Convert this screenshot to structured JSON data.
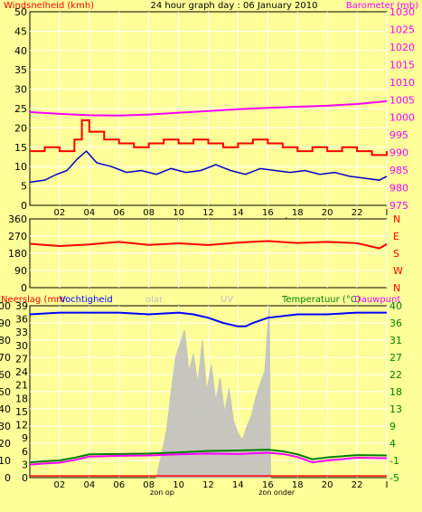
{
  "title": "24 hour graph day : 06 January 2010",
  "colors": {
    "background": "#ffff99",
    "panel_border": "#000000",
    "grid": "#ffffff",
    "wind": "#0000cc",
    "gust": "#ff0000",
    "gust_fill": "#ffcc00",
    "pressure": "#ff00ff",
    "direction": "#ff0000",
    "humidity": "#0000ff",
    "solar": "#c0c0c0",
    "temperature": "#008000",
    "dewpoint": "#ff00ff",
    "rain": "#ff0000"
  },
  "chart_data": [
    {
      "type": "line",
      "name": "wind-and-pressure",
      "ylabel_left": "Windsnelheid (kmh)",
      "ylabel_right": "Barometer (mb)",
      "x_ticks": [
        "02",
        "04",
        "06",
        "08",
        "10",
        "12",
        "14",
        "16",
        "18",
        "20",
        "22",
        "I"
      ],
      "x_range": [
        0,
        24
      ],
      "ylim_left": [
        0,
        50
      ],
      "y_ticks_left": [
        "0",
        "5",
        "10",
        "15",
        "20",
        "25",
        "30",
        "35",
        "40",
        "45",
        "50"
      ],
      "ylim_right": [
        975,
        1030
      ],
      "y_ticks_right": [
        "975",
        "980",
        "985",
        "990",
        "995",
        "1000",
        "1005",
        "1010",
        "1015",
        "1020",
        "1025",
        "1030"
      ],
      "annotations": [
        "zon op",
        "zon onder"
      ],
      "series": [
        {
          "key": "pressure",
          "axis": "right",
          "x": [
            0,
            2,
            4,
            6,
            8,
            10,
            12,
            14,
            16,
            18,
            20,
            22,
            24
          ],
          "values": [
            1001.5,
            1001.0,
            1000.6,
            1000.5,
            1000.8,
            1001.3,
            1001.8,
            1002.3,
            1002.7,
            1003.0,
            1003.3,
            1003.8,
            1004.6
          ]
        },
        {
          "key": "gust",
          "axis": "left",
          "x": [
            0,
            1,
            2,
            3,
            3.5,
            4,
            5,
            6,
            7,
            8,
            9,
            10,
            11,
            12,
            13,
            14,
            15,
            16,
            17,
            18,
            19,
            20,
            21,
            22,
            23,
            24
          ],
          "values": [
            14,
            15,
            14,
            17,
            22,
            19,
            17,
            16,
            15,
            16,
            17,
            16,
            17,
            16,
            15,
            16,
            17,
            16,
            15,
            14,
            15,
            14,
            15,
            14,
            13,
            14
          ]
        },
        {
          "key": "wind",
          "axis": "left",
          "x": [
            0,
            1,
            1.8,
            2.5,
            3.2,
            3.8,
            4.5,
            5.5,
            6.5,
            7.5,
            8.5,
            9.5,
            10.5,
            11.5,
            12.5,
            13.5,
            14.5,
            15.5,
            16.5,
            17.5,
            18.5,
            19.5,
            20.5,
            21.5,
            22.5,
            23.5,
            24
          ],
          "values": [
            6,
            6.5,
            8,
            9,
            12,
            14,
            11,
            10,
            8.5,
            9,
            8,
            9.5,
            8.5,
            9,
            10.5,
            9,
            8,
            9.5,
            9,
            8.5,
            9,
            8,
            8.5,
            7.5,
            7,
            6.5,
            7.5
          ]
        }
      ]
    },
    {
      "type": "line",
      "name": "wind-direction",
      "y_ticks_left": [
        "0",
        "90",
        "180",
        "270",
        "360"
      ],
      "ylim_left": [
        0,
        360
      ],
      "compass_labels": [
        "N",
        "W",
        "S",
        "E",
        "N"
      ],
      "x_range": [
        0,
        24
      ],
      "series": [
        {
          "key": "direction",
          "x": [
            0,
            2,
            4,
            6,
            8,
            10,
            12,
            14,
            16,
            18,
            20,
            22,
            23.5,
            24
          ],
          "values": [
            230,
            218,
            226,
            240,
            224,
            232,
            223,
            236,
            244,
            234,
            240,
            233,
            206,
            228
          ]
        }
      ]
    },
    {
      "type": "area",
      "name": "rain-humidity-solar-temperature",
      "legend": [
        "Neerslag (mm",
        "Vochtigheid",
        "olar",
        "UV",
        "Temperatuur (°C)",
        "Dauwpunt"
      ],
      "x_ticks": [
        "02",
        "04",
        "06",
        "08",
        "10",
        "12",
        "14",
        "16",
        "18",
        "20",
        "22",
        "I"
      ],
      "x_range": [
        0,
        24
      ],
      "ylim_left": [
        0,
        100
      ],
      "y_ticks_left": [
        "0",
        "10",
        "20",
        "30",
        "40",
        "50",
        "60",
        "70",
        "80",
        "90",
        "100"
      ],
      "ylim_left2": [
        0,
        39
      ],
      "y_ticks_left2": [
        "0",
        "3",
        "6",
        "9",
        "12",
        "15",
        "18",
        "21",
        "24",
        "27",
        "30",
        "33",
        "36",
        "39"
      ],
      "ylim_right": [
        -5,
        40
      ],
      "y_ticks_right": [
        "-5",
        "-1",
        "4",
        "9",
        "13",
        "18",
        "22",
        "27",
        "31",
        "36",
        "40"
      ],
      "annotations": [
        "zon op",
        "zon onder"
      ],
      "series": [
        {
          "key": "humidity",
          "axis": "left",
          "x": [
            0,
            2,
            4,
            6,
            8,
            10,
            11,
            12,
            13,
            14,
            14.5,
            15,
            16,
            18,
            20,
            22,
            24
          ],
          "values": [
            95,
            96,
            96,
            96,
            95,
            96,
            95,
            93,
            90,
            88,
            88,
            90,
            93,
            95,
            95,
            96,
            96
          ]
        },
        {
          "key": "solar",
          "axis": "left",
          "x": [
            8.5,
            8.9,
            9.2,
            9.5,
            9.8,
            10.1,
            10.4,
            10.7,
            11.0,
            11.3,
            11.6,
            11.9,
            12.2,
            12.5,
            12.8,
            13.1,
            13.4,
            13.7,
            14.0,
            14.3,
            14.6,
            14.9,
            15.2,
            15.5,
            15.8,
            16.1,
            16.2
          ],
          "values": [
            0,
            15,
            28,
            50,
            70,
            78,
            86,
            62,
            72,
            55,
            80,
            50,
            66,
            45,
            58,
            38,
            52,
            33,
            26,
            22,
            30,
            36,
            47,
            55,
            62,
            100,
            0
          ]
        },
        {
          "key": "temperature",
          "axis": "right",
          "x": [
            0,
            1,
            2,
            3,
            4,
            6,
            8,
            10,
            12,
            14,
            16,
            17,
            18,
            19,
            20,
            22,
            24
          ],
          "values": [
            -1,
            -0.7,
            -0.5,
            0.2,
            1.1,
            1.2,
            1.3,
            1.6,
            2.0,
            2.1,
            2.3,
            1.9,
            1.1,
            -0.2,
            0.3,
            0.9,
            0.8
          ]
        },
        {
          "key": "dewpoint",
          "axis": "right",
          "x": [
            0,
            1,
            2,
            3,
            4,
            6,
            8,
            10,
            12,
            14,
            16,
            17,
            18,
            19,
            20,
            22,
            24
          ],
          "values": [
            -1.6,
            -1.3,
            -1.1,
            -0.4,
            0.5,
            0.7,
            0.8,
            1.1,
            1.3,
            1.2,
            1.5,
            1.2,
            0.4,
            -1.0,
            -0.5,
            0.2,
            0.1
          ]
        },
        {
          "key": "rain",
          "axis": "left",
          "x": [
            0,
            24
          ],
          "values": [
            1,
            1
          ]
        }
      ]
    }
  ]
}
